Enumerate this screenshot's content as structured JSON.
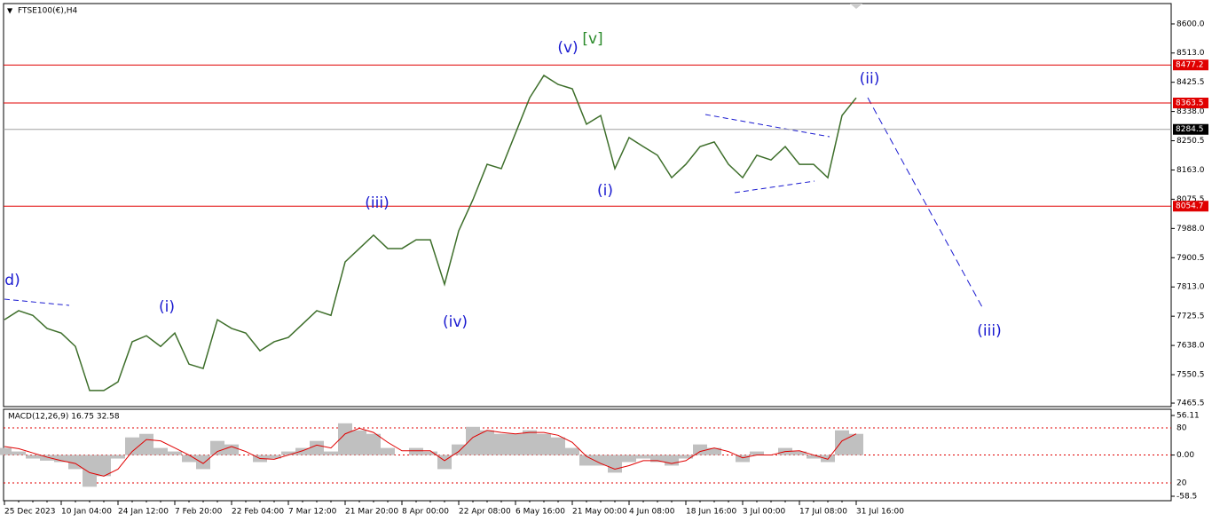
{
  "chart_data": [
    {
      "type": "line",
      "title": "FTSE100(€),H4",
      "categories": [
        "25 Dec 2023",
        null,
        null,
        null,
        "10 Jan 04:00",
        null,
        null,
        null,
        "24 Jan 12:00",
        null,
        null,
        null,
        "7 Feb 20:00",
        null,
        null,
        null,
        "22 Feb 04:00",
        null,
        null,
        null,
        "7 Mar 12:00",
        null,
        null,
        null,
        "21 Mar 20:00",
        null,
        null,
        null,
        "8 Apr 00:00",
        null,
        null,
        null,
        "22 Apr 08:00",
        null,
        null,
        null,
        "6 May 16:00",
        null,
        null,
        null,
        "21 May 00:00",
        null,
        null,
        null,
        "4 Jun 08:00",
        null,
        null,
        null,
        "18 Jun 16:00",
        null,
        null,
        null,
        "3 Jul 00:00",
        null,
        null,
        null,
        "17 Jul 08:00",
        null,
        null,
        null,
        "31 Jul 16:00"
      ],
      "series": [
        {
          "color": "#3d6e2a",
          "values": [
            7715,
            7742,
            7728,
            7689,
            7675,
            7635,
            7503,
            7503,
            7529,
            7649,
            7667,
            7635,
            7675,
            7582,
            7569,
            7715,
            7689,
            7675,
            7622,
            7649,
            7662,
            7702,
            7742,
            7728,
            7888,
            7928,
            7968,
            7928,
            7928,
            7954,
            7954,
            7821,
            7981,
            8074,
            8180,
            8167,
            8273,
            8379,
            8446,
            8419,
            8406,
            8300,
            8326,
            8167,
            8260,
            8233,
            8207,
            8140,
            8180,
            8233,
            8247,
            8180,
            8140,
            8207,
            8193,
            8233,
            8180,
            8180,
            8140,
            8326,
            8379
          ]
        }
      ],
      "ylim": [
        7455,
        8661
      ],
      "yticks": [
        {
          "value": 8600,
          "label": "8600.0"
        },
        {
          "value": 8513,
          "label": "8513.0"
        },
        8425.5,
        {
          "value": 8338,
          "label": "8338.0"
        },
        8250.5,
        {
          "value": 8163,
          "label": "8163.0"
        },
        8075.5,
        {
          "value": 7988,
          "label": "7988.0"
        },
        7900.5,
        {
          "value": 7813,
          "label": "7813.0"
        },
        7725.5,
        {
          "value": 7638,
          "label": "7638.0"
        },
        7550.5,
        7465.5
      ],
      "levels": [
        {
          "value": 8477.2,
          "color": "#e00000"
        },
        {
          "value": 8363.5,
          "color": "#e00000"
        },
        {
          "value": 8284.5,
          "color": "#a0a0a0"
        },
        {
          "value": 8054.7,
          "color": "#e00000"
        }
      ],
      "annotations": [
        {
          "text": "d)",
          "color": "#1a1ad0"
        },
        {
          "text": "(i)",
          "color": "#1a1ad0"
        },
        {
          "text": "(iii)",
          "color": "#1a1ad0"
        },
        {
          "text": "(iv)",
          "color": "#1a1ad0"
        },
        {
          "text": "(v)",
          "color": "#1a1ad0"
        },
        {
          "text": "[v]",
          "color": "#2a8a2a"
        },
        {
          "text": "(i)",
          "color": "#1a1ad0"
        },
        {
          "text": "(ii)",
          "color": "#1a1ad0"
        },
        {
          "text": "(iii)",
          "color": "#1a1ad0"
        }
      ]
    },
    {
      "type": "macd",
      "title": "MACD(12,26,9) 16.75 32.58",
      "series": [
        {
          "color": "#c0c0c0",
          "values": [
            10,
            5,
            -5,
            -8,
            -10,
            -20,
            -45,
            -30,
            -5,
            25,
            30,
            10,
            5,
            -10,
            -20,
            20,
            15,
            0,
            -10,
            -5,
            5,
            10,
            20,
            5,
            45,
            35,
            30,
            10,
            0,
            10,
            5,
            -20,
            15,
            40,
            35,
            30,
            30,
            35,
            30,
            25,
            10,
            -15,
            -15,
            -25,
            -10,
            -5,
            -10,
            -15,
            -5,
            15,
            10,
            0,
            -10,
            5,
            0,
            10,
            5,
            -5,
            -10,
            35,
            30
          ]
        },
        {
          "color": "#e00000",
          "values": [
            12,
            9,
            3,
            -3,
            -8,
            -12,
            -25,
            -30,
            -20,
            5,
            22,
            20,
            10,
            0,
            -12,
            5,
            12,
            5,
            -5,
            -6,
            0,
            6,
            14,
            10,
            30,
            38,
            32,
            18,
            6,
            6,
            6,
            -8,
            5,
            25,
            35,
            32,
            30,
            32,
            32,
            28,
            18,
            -2,
            -12,
            -20,
            -15,
            -8,
            -8,
            -12,
            -8,
            5,
            10,
            5,
            -4,
            0,
            0,
            5,
            6,
            0,
            -6,
            20,
            30
          ]
        }
      ],
      "ylim": [
        -58.5,
        56.11
      ],
      "yticks": [
        56.11,
        {
          "value": 0,
          "label": "0.00"
        },
        -58.5
      ],
      "level_labels": [
        "80",
        "20"
      ]
    }
  ]
}
